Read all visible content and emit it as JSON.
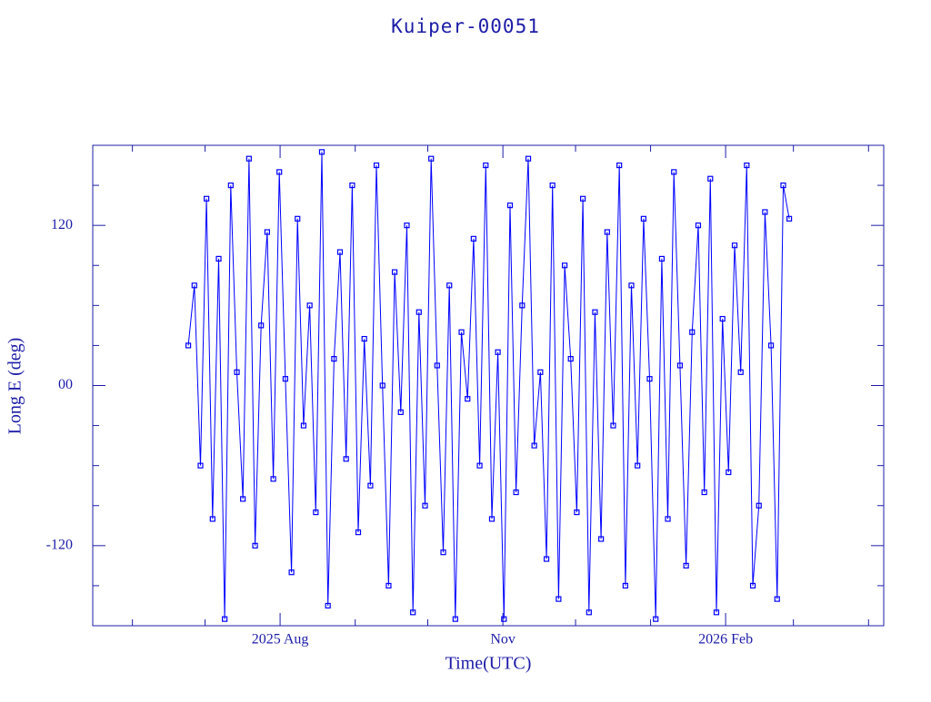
{
  "chart_data": {
    "type": "line",
    "title": "Kuiper-00051",
    "x_label": "Time(UTC)",
    "y_label": "Long E (deg)",
    "xlim": [
      2025.3688,
      2026.2638
    ],
    "xticks": [
      {
        "value": 2025.5808,
        "label": "2025 Aug"
      },
      {
        "value": 2025.8329,
        "label": "Nov"
      },
      {
        "value": 2026.0849,
        "label": "2026 Feb"
      }
    ],
    "xminorticks": [
      2025.4137,
      2025.4959,
      2025.6658,
      2025.7479,
      2025.9151,
      2026.0,
      2026.1616,
      2026.2466
    ],
    "ylim": [
      -180,
      180
    ],
    "yticks": [
      {
        "value": -120,
        "label": "-120"
      },
      {
        "value": 0,
        "label": "00"
      },
      {
        "value": 120,
        "label": "120"
      }
    ],
    "yminorticks": [
      -150,
      -90,
      -60,
      -30,
      30,
      60,
      90,
      150
    ],
    "grid": false,
    "series": [
      {
        "name": "Long E",
        "color": "#0000ff",
        "x": [
          2025.4769,
          2025.4838,
          2025.4907,
          2025.4975,
          2025.5044,
          2025.5113,
          2025.5181,
          2025.525,
          2025.5319,
          2025.5387,
          2025.5456,
          2025.5525,
          2025.5593,
          2025.5662,
          2025.5731,
          2025.5799,
          2025.5868,
          2025.5937,
          2025.6005,
          2025.6074,
          2025.6143,
          2025.6212,
          2025.628,
          2025.6349,
          2025.6418,
          2025.6486,
          2025.6555,
          2025.6624,
          2025.6692,
          2025.6761,
          2025.683,
          2025.6898,
          2025.6967,
          2025.7036,
          2025.7104,
          2025.7173,
          2025.7242,
          2025.7311,
          2025.7379,
          2025.7448,
          2025.7517,
          2025.7585,
          2025.7654,
          2025.7723,
          2025.7791,
          2025.786,
          2025.7929,
          2025.7997,
          2025.8066,
          2025.8135,
          2025.8204,
          2025.8272,
          2025.8341,
          2025.841,
          2025.8478,
          2025.8547,
          2025.8616,
          2025.8684,
          2025.8753,
          2025.8822,
          2025.889,
          2025.8959,
          2025.9028,
          2025.9096,
          2025.9165,
          2025.9234,
          2025.9303,
          2025.9371,
          2025.944,
          2025.9509,
          2025.9577,
          2025.9646,
          2025.9715,
          2025.9783,
          2025.9852,
          2025.9921,
          2025.9989,
          2026.0058,
          2026.0127,
          2026.0195,
          2026.0264,
          2026.0333,
          2026.0402,
          2026.047,
          2026.0539,
          2026.0608,
          2026.0676,
          2026.0745,
          2026.0814,
          2026.0882,
          2026.0951,
          2026.102,
          2026.1088,
          2026.1157,
          2026.1226,
          2026.1294,
          2026.1363,
          2026.1432,
          2026.1501,
          2026.1569
        ],
        "values": [
          30,
          75,
          -60,
          140,
          -100,
          95,
          -175,
          150,
          10,
          -85,
          170,
          -120,
          45,
          115,
          -70,
          160,
          5,
          -140,
          125,
          -30,
          60,
          -95,
          175,
          -165,
          20,
          100,
          -55,
          150,
          -110,
          35,
          -75,
          165,
          0,
          -150,
          85,
          -20,
          120,
          -170,
          55,
          -90,
          170,
          15,
          -125,
          75,
          -175,
          40,
          -10,
          110,
          -60,
          165,
          -100,
          25,
          -175,
          135,
          -80,
          60,
          170,
          -45,
          10,
          -130,
          150,
          -160,
          90,
          20,
          -95,
          140,
          -170,
          55,
          -115,
          115,
          -30,
          165,
          -150,
          75,
          -60,
          125,
          5,
          -175,
          95,
          -100,
          160,
          15,
          -135,
          40,
          120,
          -80,
          155,
          -170,
          50,
          -65,
          105,
          10,
          165,
          -150,
          -90,
          130,
          30,
          -160,
          150,
          125
        ]
      }
    ]
  }
}
